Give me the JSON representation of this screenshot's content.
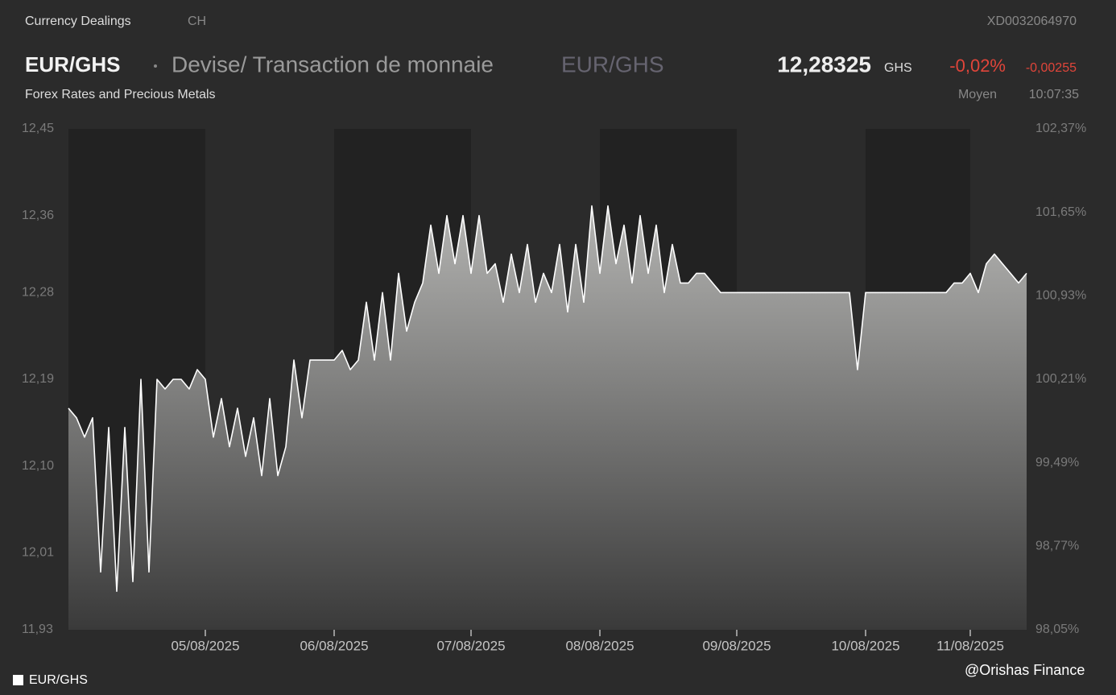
{
  "header": {
    "category": "Currency Dealings",
    "country": "CH",
    "isin": "XD0032064970",
    "symbol": "EUR/GHS",
    "name": "Devise/ Transaction de monnaie",
    "symbol_repeat": "EUR/GHS",
    "price": "12,28325",
    "currency": "GHS",
    "change_pct": "-0,02%",
    "change_abs": "-0,00255",
    "subtitle": "Forex Rates and Precious Metals",
    "price_type": "Moyen",
    "time": "10:07:35",
    "watermark": "@Orishas Finance"
  },
  "chart_data": {
    "type": "area",
    "xlim": [
      0,
      119
    ],
    "xticks": [
      {
        "value": 17,
        "label": "05/08/2025"
      },
      {
        "value": 33,
        "label": "06/08/2025"
      },
      {
        "value": 50,
        "label": "07/08/2025"
      },
      {
        "value": 66,
        "label": "08/08/2025"
      },
      {
        "value": 83,
        "label": "09/08/2025"
      },
      {
        "value": 99,
        "label": "10/08/2025"
      },
      {
        "value": 112,
        "label": "11/08/2025"
      }
    ],
    "ylim": [
      11.93,
      12.45
    ],
    "yticks": [
      {
        "value": 12.45,
        "label": "12,45"
      },
      {
        "value": 12.36,
        "label": "12,36"
      },
      {
        "value": 12.28,
        "label": "12,28"
      },
      {
        "value": 12.19,
        "label": "12,19"
      },
      {
        "value": 12.1,
        "label": "12,10"
      },
      {
        "value": 12.01,
        "label": "12,01"
      },
      {
        "value": 11.93,
        "label": "11,93"
      }
    ],
    "y2lim": [
      98.05,
      102.37
    ],
    "y2ticks": [
      {
        "value": 102.37,
        "label": "102,37%"
      },
      {
        "value": 101.65,
        "label": "101,65%"
      },
      {
        "value": 100.93,
        "label": "100,93%"
      },
      {
        "value": 100.21,
        "label": "100,21%"
      },
      {
        "value": 99.49,
        "label": "99,49%"
      },
      {
        "value": 98.77,
        "label": "98,77%"
      },
      {
        "value": 98.05,
        "label": "98,05%"
      }
    ],
    "legend": "bottom-left",
    "series": [
      {
        "name": "EUR/GHS",
        "color": "#ffffff",
        "values": [
          12.16,
          12.15,
          12.13,
          12.15,
          11.99,
          12.14,
          11.97,
          12.14,
          11.98,
          12.19,
          11.99,
          12.19,
          12.18,
          12.19,
          12.19,
          12.18,
          12.2,
          12.19,
          12.13,
          12.17,
          12.12,
          12.16,
          12.11,
          12.15,
          12.09,
          12.17,
          12.09,
          12.12,
          12.21,
          12.15,
          12.21,
          12.21,
          12.21,
          12.21,
          12.22,
          12.2,
          12.21,
          12.27,
          12.21,
          12.28,
          12.21,
          12.3,
          12.24,
          12.27,
          12.29,
          12.35,
          12.3,
          12.36,
          12.31,
          12.36,
          12.3,
          12.36,
          12.3,
          12.31,
          12.27,
          12.32,
          12.28,
          12.33,
          12.27,
          12.3,
          12.28,
          12.33,
          12.26,
          12.33,
          12.27,
          12.37,
          12.3,
          12.37,
          12.31,
          12.35,
          12.29,
          12.36,
          12.3,
          12.35,
          12.28,
          12.33,
          12.29,
          12.29,
          12.3,
          12.3,
          12.29,
          12.28,
          12.28,
          12.28,
          12.28,
          12.28,
          12.28,
          12.28,
          12.28,
          12.28,
          12.28,
          12.28,
          12.28,
          12.28,
          12.28,
          12.28,
          12.28,
          12.28,
          12.2,
          12.28,
          12.28,
          12.28,
          12.28,
          12.28,
          12.28,
          12.28,
          12.28,
          12.28,
          12.28,
          12.28,
          12.29,
          12.29,
          12.3,
          12.28,
          12.31,
          12.32,
          12.31,
          12.3,
          12.29,
          12.3
        ]
      }
    ]
  }
}
